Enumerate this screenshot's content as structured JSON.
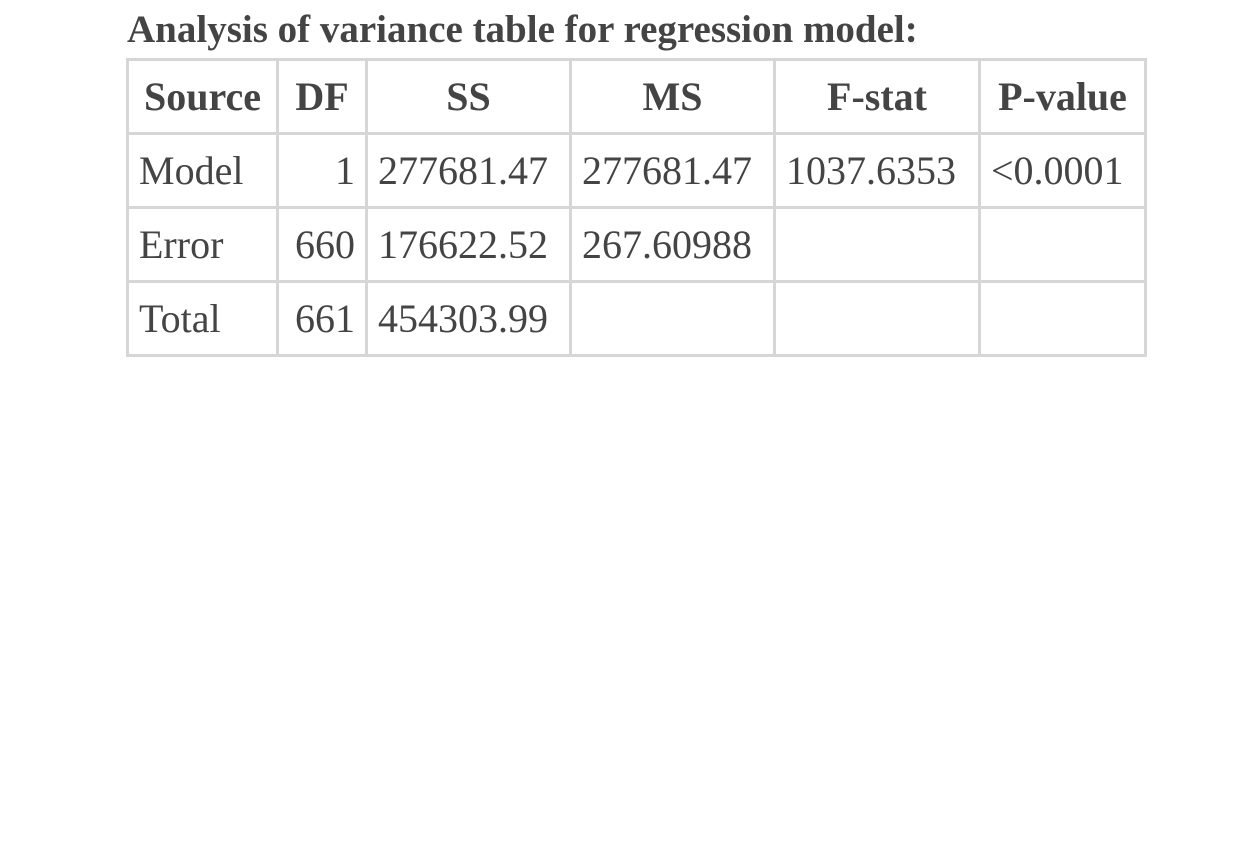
{
  "title": "Analysis of variance table for regression model:",
  "table": {
    "header": [
      "Source",
      "DF",
      "SS",
      "MS",
      "F-stat",
      "P-value"
    ],
    "rows": [
      [
        "Model",
        "1",
        "277681.47",
        "277681.47",
        "1037.6353",
        "<0.0001"
      ],
      [
        "Error",
        "660",
        "176622.52",
        "267.60988"
      ],
      [
        "Total",
        "661",
        "454303.99"
      ]
    ]
  }
}
